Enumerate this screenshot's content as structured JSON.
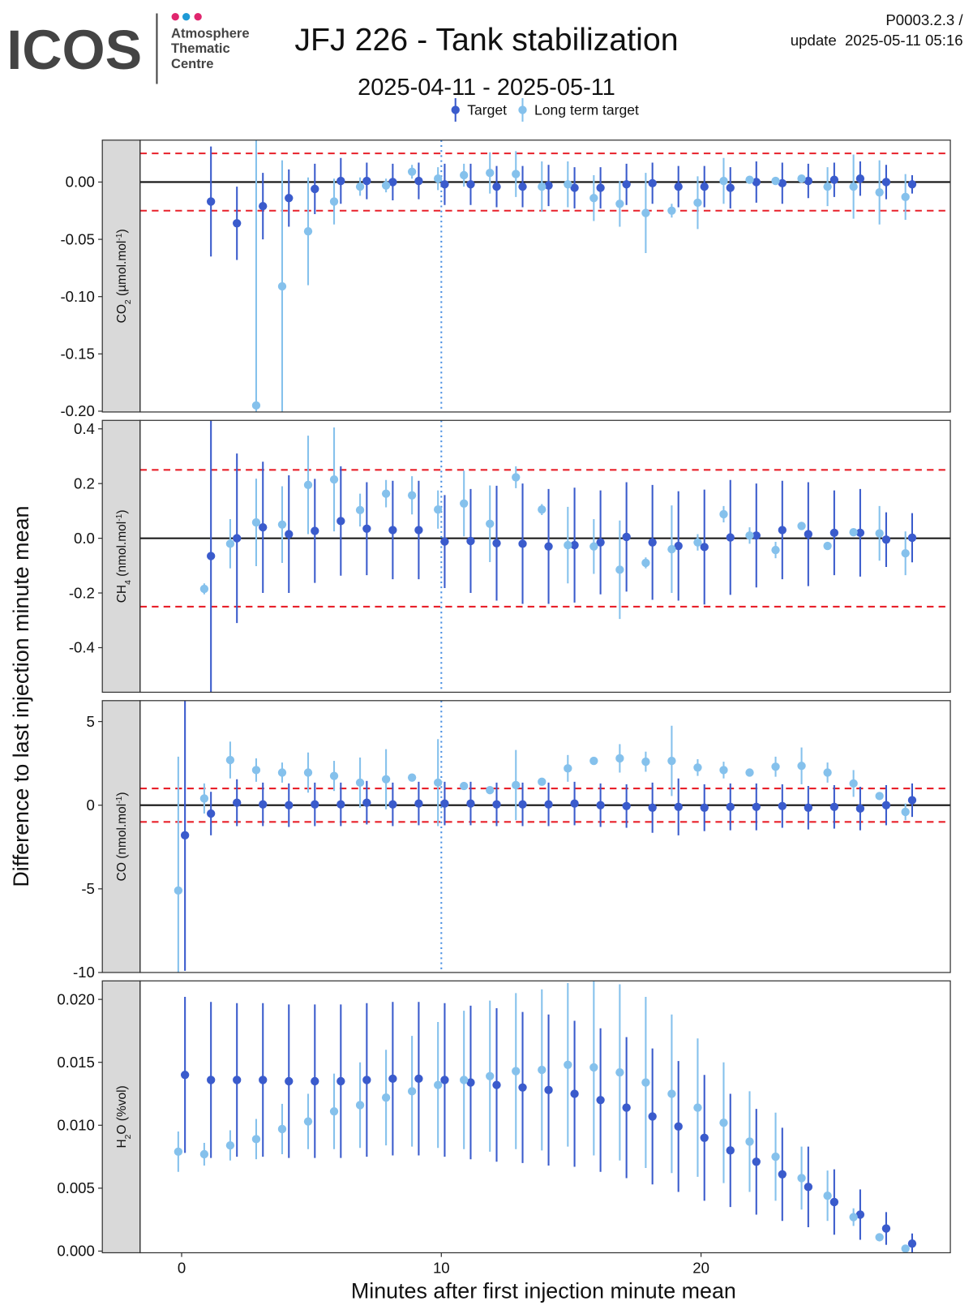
{
  "header": {
    "logo": "ICOS",
    "logo_lines": [
      "Atmosphere",
      "Thematic",
      "Centre"
    ],
    "title": "JFJ 226 - Tank stabilization",
    "subtitle": "2025-04-11 - 2025-05-11",
    "ref": "P0003.2.3 /",
    "update": "update  2025-05-11 05:16",
    "y_label": "Difference to last injection minute mean",
    "x_label": "Minutes after first injection minute mean"
  },
  "chart_data": [
    {
      "type": "errorbar",
      "strip": [
        {
          "text": "CO"
        },
        {
          "sub": "2"
        },
        {
          "text": " (µmol.mol"
        },
        {
          "sup": "-1"
        },
        {
          "text": ")"
        }
      ],
      "x": [
        0,
        1,
        2,
        3,
        4,
        5,
        6,
        7,
        8,
        9,
        10,
        11,
        12,
        13,
        14,
        15,
        16,
        17,
        18,
        19,
        20,
        21,
        22,
        23,
        24,
        25,
        26,
        27,
        28
      ],
      "xlim": [
        -1.6,
        29.6
      ],
      "vline": 10,
      "ylim": [
        -0.2007,
        0.0366
      ],
      "yticks": [
        {
          "value": -0.2,
          "label": "-0.20"
        },
        {
          "value": -0.15,
          "label": "-0.15"
        },
        {
          "value": -0.1,
          "label": "-0.10"
        },
        {
          "value": -0.05,
          "label": "-0.05"
        },
        {
          "value": 0,
          "label": "0.00"
        }
      ],
      "hline": 0,
      "limits": [
        -0.025,
        0.025
      ],
      "series": [
        {
          "name": "Target",
          "color": "#3a5bcc",
          "values": [
            null,
            -0.017,
            -0.036,
            -0.021,
            -0.014,
            -0.006,
            0.001,
            0.001,
            0.0,
            0.001,
            -0.002,
            -0.002,
            -0.004,
            -0.004,
            -0.003,
            -0.005,
            -0.005,
            -0.002,
            -0.001,
            -0.004,
            -0.004,
            -0.005,
            0.0,
            -0.001,
            0.001,
            0.002,
            0.003,
            0.0,
            -0.002
          ],
          "errors": [
            null,
            0.048,
            0.032,
            0.029,
            0.025,
            0.022,
            0.02,
            0.016,
            0.016,
            0.016,
            0.018,
            0.018,
            0.018,
            0.018,
            0.018,
            0.018,
            0.018,
            0.018,
            0.018,
            0.018,
            0.018,
            0.018,
            0.018,
            0.018,
            0.015,
            0.015,
            0.015,
            0.015,
            0.008
          ]
        },
        {
          "name": "Long term target",
          "color": "#85c1ec",
          "values": [
            null,
            null,
            null,
            -0.195,
            -0.091,
            -0.043,
            -0.017,
            -0.004,
            -0.003,
            0.009,
            0.003,
            0.006,
            0.008,
            0.007,
            -0.004,
            -0.002,
            -0.014,
            -0.019,
            -0.027,
            -0.025,
            -0.018,
            0.001,
            0.002,
            0.001,
            0.003,
            -0.004,
            -0.004,
            -0.009,
            -0.013
          ],
          "errors": [
            null,
            null,
            null,
            0.24,
            0.11,
            0.047,
            0.02,
            0.008,
            0.006,
            0.006,
            0.01,
            0.01,
            0.018,
            0.02,
            0.022,
            0.02,
            0.02,
            0.02,
            0.035,
            0.006,
            0.023,
            0.02,
            0.003,
            0.003,
            0.003,
            0.017,
            0.028,
            0.028,
            0.02
          ]
        }
      ]
    },
    {
      "type": "errorbar",
      "strip": [
        {
          "text": "CH"
        },
        {
          "sub": "4"
        },
        {
          "text": " (nmol.mol"
        },
        {
          "sup": "-1"
        },
        {
          "text": ")"
        }
      ],
      "x": [
        0,
        1,
        2,
        3,
        4,
        5,
        6,
        7,
        8,
        9,
        10,
        11,
        12,
        13,
        14,
        15,
        16,
        17,
        18,
        19,
        20,
        21,
        22,
        23,
        24,
        25,
        26,
        27,
        28
      ],
      "xlim": [
        -1.6,
        29.6
      ],
      "vline": 10,
      "ylim": [
        -0.563,
        0.431
      ],
      "yticks": [
        -0.4,
        -0.2,
        {
          "value": 0,
          "label": "0.0"
        },
        0.2,
        0.4
      ],
      "hline": 0,
      "limits": [
        -0.25,
        0.25
      ],
      "series": [
        {
          "name": "Target",
          "color": "#3a5bcc",
          "values": [
            null,
            -0.065,
            0.0,
            0.04,
            0.015,
            0.027,
            0.063,
            0.035,
            0.03,
            0.03,
            -0.012,
            -0.01,
            -0.018,
            -0.02,
            -0.03,
            -0.025,
            -0.015,
            0.005,
            -0.015,
            -0.028,
            -0.032,
            0.003,
            0.01,
            0.03,
            0.015,
            0.02,
            0.02,
            -0.005,
            0.002
          ],
          "errors": [
            null,
            0.5,
            0.31,
            0.24,
            0.215,
            0.19,
            0.2,
            0.17,
            0.18,
            0.18,
            0.17,
            0.19,
            0.21,
            0.22,
            0.21,
            0.21,
            0.19,
            0.2,
            0.21,
            0.2,
            0.21,
            0.21,
            0.19,
            0.18,
            0.19,
            0.155,
            0.16,
            0.1,
            0.09
          ]
        },
        {
          "name": "Long term target",
          "color": "#85c1ec",
          "values": [
            null,
            -0.185,
            -0.02,
            0.058,
            0.05,
            0.195,
            0.215,
            0.103,
            0.163,
            0.157,
            0.105,
            0.127,
            0.053,
            0.223,
            0.105,
            -0.025,
            -0.03,
            -0.115,
            -0.09,
            -0.04,
            -0.015,
            0.088,
            0.01,
            -0.043,
            0.045,
            -0.028,
            0.022,
            0.018,
            -0.055
          ],
          "errors": [
            null,
            0.02,
            0.09,
            0.16,
            0.14,
            0.18,
            0.19,
            0.06,
            0.05,
            0.07,
            0.07,
            0.12,
            0.14,
            0.04,
            0.02,
            0.14,
            0.1,
            0.18,
            0.02,
            0.16,
            0.03,
            0.03,
            0.03,
            0.03,
            0.01,
            0.01,
            0.01,
            0.1,
            0.08
          ]
        }
      ]
    },
    {
      "type": "errorbar",
      "strip": [
        {
          "text": "CO (nmol.mol"
        },
        {
          "sup": "-1"
        },
        {
          "text": ")"
        }
      ],
      "x": [
        0,
        1,
        2,
        3,
        4,
        5,
        6,
        7,
        8,
        9,
        10,
        11,
        12,
        13,
        14,
        15,
        16,
        17,
        18,
        19,
        20,
        21,
        22,
        23,
        24,
        25,
        26,
        27,
        28
      ],
      "xlim": [
        -1.6,
        29.6
      ],
      "vline": 10,
      "ylim": [
        -10,
        6.25
      ],
      "yticks": [
        -10,
        -5,
        0,
        5
      ],
      "hline": 0,
      "limits": [
        -1,
        1
      ],
      "series": [
        {
          "name": "Target",
          "color": "#3a5bcc",
          "values": [
            -1.8,
            -0.5,
            0.15,
            0.05,
            0.0,
            0.05,
            0.05,
            0.15,
            0.05,
            0.1,
            0.1,
            0.1,
            0.05,
            0.05,
            0.05,
            0.1,
            0.0,
            -0.05,
            -0.15,
            -0.1,
            -0.15,
            -0.1,
            -0.1,
            -0.05,
            -0.15,
            -0.1,
            -0.2,
            0.0,
            0.3
          ],
          "errors": [
            8.1,
            1.3,
            1.4,
            1.3,
            1.3,
            1.3,
            1.3,
            1.3,
            1.3,
            1.3,
            1.3,
            1.3,
            1.3,
            1.3,
            1.3,
            1.3,
            1.3,
            1.3,
            1.5,
            1.7,
            1.4,
            1.4,
            1.4,
            1.3,
            1.3,
            1.3,
            1.3,
            1.2,
            1.0
          ]
        },
        {
          "name": "Long term target",
          "color": "#85c1ec",
          "values": [
            -5.1,
            0.4,
            2.7,
            2.1,
            1.95,
            1.95,
            1.75,
            1.35,
            1.55,
            1.65,
            1.35,
            1.15,
            0.9,
            1.2,
            1.4,
            2.2,
            2.65,
            2.8,
            2.6,
            2.65,
            2.25,
            2.1,
            1.95,
            2.3,
            2.35,
            1.95,
            1.3,
            0.55,
            -0.4
          ],
          "errors": [
            8.0,
            0.9,
            1.1,
            0.7,
            0.6,
            1.2,
            0.9,
            1.5,
            1.8,
            0.1,
            2.6,
            0.1,
            0.1,
            2.1,
            0.1,
            0.8,
            0.1,
            0.85,
            0.6,
            2.1,
            0.5,
            0.5,
            0.1,
            0.6,
            1.1,
            0.6,
            0.8,
            0.1,
            0.5
          ]
        }
      ]
    },
    {
      "type": "errorbar",
      "strip": [
        {
          "text": "H"
        },
        {
          "sub": "2"
        },
        {
          "text": "O (%vol)"
        }
      ],
      "x": [
        0,
        1,
        2,
        3,
        4,
        5,
        6,
        7,
        8,
        9,
        10,
        11,
        12,
        13,
        14,
        15,
        16,
        17,
        18,
        19,
        20,
        21,
        22,
        23,
        24,
        25,
        26,
        27,
        28
      ],
      "xlim": [
        -1.6,
        29.6
      ],
      "xticks": [
        0,
        10,
        20
      ],
      "ylim": [
        -0.00013,
        0.02147
      ],
      "yticks": [
        {
          "value": 0,
          "label": "0.000"
        },
        {
          "value": 0.005,
          "label": "0.005"
        },
        {
          "value": 0.01,
          "label": "0.010"
        },
        {
          "value": 0.015,
          "label": "0.015"
        },
        {
          "value": 0.02,
          "label": "0.020"
        }
      ],
      "series": [
        {
          "name": "Target",
          "color": "#3a5bcc",
          "values": [
            0.014,
            0.0136,
            0.0136,
            0.0136,
            0.0135,
            0.0135,
            0.0135,
            0.0136,
            0.0137,
            0.0137,
            0.0136,
            0.0134,
            0.0132,
            0.013,
            0.0128,
            0.0125,
            0.012,
            0.0114,
            0.0107,
            0.0099,
            0.009,
            0.008,
            0.0071,
            0.0061,
            0.0051,
            0.0039,
            0.0029,
            0.0018,
            0.0006
          ],
          "errors": [
            0.0062,
            0.0062,
            0.0061,
            0.0061,
            0.0061,
            0.0061,
            0.0061,
            0.0061,
            0.0061,
            0.0061,
            0.0061,
            0.0061,
            0.0061,
            0.006,
            0.006,
            0.0058,
            0.0057,
            0.0056,
            0.0054,
            0.0052,
            0.005,
            0.0045,
            0.0042,
            0.0037,
            0.0032,
            0.0026,
            0.002,
            0.0013,
            0.0008
          ]
        },
        {
          "name": "Long term target",
          "color": "#85c1ec",
          "values": [
            0.0079,
            0.0077,
            0.0084,
            0.0089,
            0.0097,
            0.0103,
            0.0111,
            0.0116,
            0.0122,
            0.0127,
            0.0132,
            0.0136,
            0.0139,
            0.0143,
            0.0144,
            0.0148,
            0.0146,
            0.0142,
            0.0134,
            0.0125,
            0.0114,
            0.0102,
            0.0087,
            0.0075,
            0.0058,
            0.0044,
            0.0027,
            0.0011,
            0.0002
          ],
          "errors": [
            0.0016,
            0.0009,
            0.0012,
            0.0016,
            0.002,
            0.0022,
            0.003,
            0.0034,
            0.0038,
            0.0044,
            0.005,
            0.0055,
            0.006,
            0.0062,
            0.0064,
            0.0065,
            0.007,
            0.007,
            0.0068,
            0.0063,
            0.0055,
            0.0048,
            0.004,
            0.0035,
            0.0025,
            0.002,
            0.0007,
            0.0002,
            0.0001
          ]
        }
      ]
    }
  ]
}
